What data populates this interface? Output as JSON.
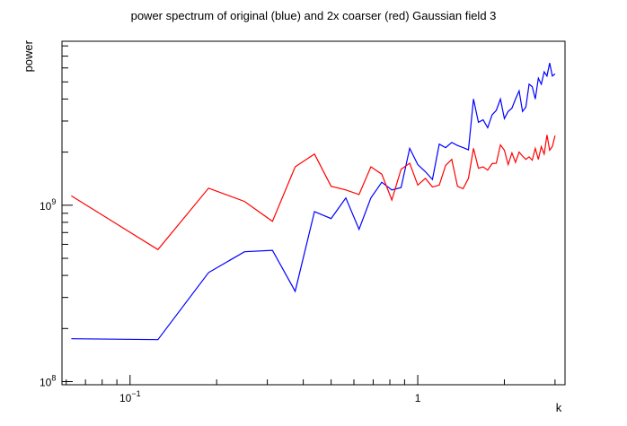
{
  "chart_data": {
    "type": "line",
    "title": "power spectrum of original (blue) and 2x coarser (red) Gaussian field 3",
    "xlabel": "k",
    "ylabel": "power",
    "xscale": "log",
    "yscale": "log",
    "xlim": [
      0.058,
      3.25
    ],
    "ylim": [
      96000000.0,
      8500000000.0
    ],
    "grid": false,
    "legend": "none",
    "x_ticks": [
      {
        "value": 0.1,
        "base": "10",
        "exp": "−1"
      },
      {
        "value": 1,
        "base": "1",
        "exp": ""
      }
    ],
    "y_ticks": [
      {
        "value": 100000000.0,
        "base": "10",
        "exp": "8"
      },
      {
        "value": 1000000000.0,
        "base": "10",
        "exp": "9"
      }
    ],
    "series": [
      {
        "color": "#0000ff",
        "x": [
          0.0625,
          0.125,
          0.1875,
          0.25,
          0.3125,
          0.375,
          0.4375,
          0.5,
          0.5625,
          0.625,
          0.6875,
          0.75,
          0.8125,
          0.875,
          0.9375,
          1.0,
          1.0625,
          1.125,
          1.1875,
          1.25,
          1.3125,
          1.375,
          1.4375,
          1.5,
          1.5625,
          1.625,
          1.6875,
          1.75,
          1.8125,
          1.875,
          1.9375,
          2.0,
          2.0625,
          2.125,
          2.1875,
          2.25,
          2.3125,
          2.375,
          2.4375,
          2.5,
          2.5625,
          2.625,
          2.6875,
          2.75,
          2.8125,
          2.875,
          2.9375,
          3.0
        ],
        "y": [
          175000000.0,
          173000000.0,
          415000000.0,
          545000000.0,
          555000000.0,
          325000000.0,
          920000000.0,
          840000000.0,
          1100000000.0,
          730000000.0,
          1100000000.0,
          1350000000.0,
          1220000000.0,
          1260000000.0,
          2100000000.0,
          1700000000.0,
          1550000000.0,
          1400000000.0,
          2220000000.0,
          2120000000.0,
          2270000000.0,
          2180000000.0,
          2120000000.0,
          2060000000.0,
          4000000000.0,
          2950000000.0,
          3050000000.0,
          2750000000.0,
          3250000000.0,
          3450000000.0,
          4000000000.0,
          3100000000.0,
          3400000000.0,
          3550000000.0,
          4000000000.0,
          4450000000.0,
          3400000000.0,
          3600000000.0,
          4850000000.0,
          4700000000.0,
          4000000000.0,
          5250000000.0,
          4850000000.0,
          5700000000.0,
          5400000000.0,
          6400000000.0,
          5400000000.0,
          5550000000.0
        ]
      },
      {
        "color": "#ff0000",
        "x": [
          0.0625,
          0.125,
          0.1875,
          0.25,
          0.3125,
          0.375,
          0.4375,
          0.5,
          0.5625,
          0.625,
          0.6875,
          0.75,
          0.8125,
          0.875,
          0.9375,
          1.0,
          1.0625,
          1.125,
          1.1875,
          1.25,
          1.3125,
          1.375,
          1.4375,
          1.5,
          1.5625,
          1.625,
          1.6875,
          1.75,
          1.8125,
          1.875,
          1.9375,
          2.0,
          2.0625,
          2.125,
          2.1875,
          2.25,
          2.3125,
          2.375,
          2.4375,
          2.5,
          2.5625,
          2.625,
          2.6875,
          2.75,
          2.8125,
          2.875,
          2.9375,
          3.0
        ],
        "y": [
          1130000000.0,
          560000000.0,
          1250000000.0,
          1050000000.0,
          810000000.0,
          1650000000.0,
          1950000000.0,
          1280000000.0,
          1220000000.0,
          1150000000.0,
          1650000000.0,
          1500000000.0,
          1070000000.0,
          1600000000.0,
          1730000000.0,
          1300000000.0,
          1420000000.0,
          1270000000.0,
          1300000000.0,
          1680000000.0,
          1820000000.0,
          1280000000.0,
          1240000000.0,
          1420000000.0,
          2100000000.0,
          1620000000.0,
          1650000000.0,
          1580000000.0,
          1720000000.0,
          1730000000.0,
          2200000000.0,
          2050000000.0,
          1700000000.0,
          1980000000.0,
          1750000000.0,
          2000000000.0,
          1900000000.0,
          1820000000.0,
          1880000000.0,
          1800000000.0,
          2100000000.0,
          1820000000.0,
          2150000000.0,
          1950000000.0,
          2500000000.0,
          2050000000.0,
          2150000000.0,
          2480000000.0
        ]
      }
    ]
  }
}
